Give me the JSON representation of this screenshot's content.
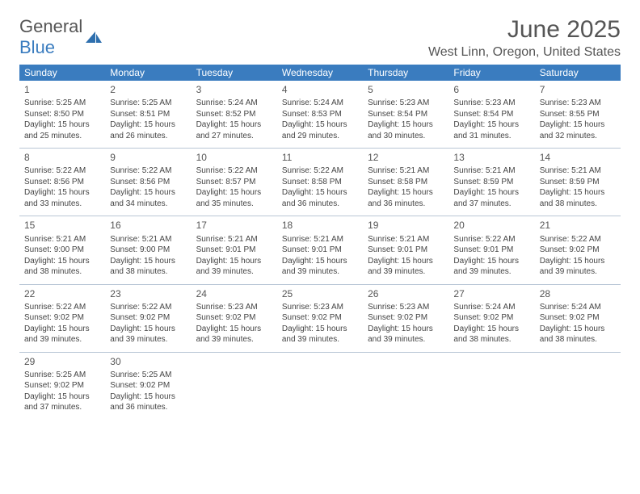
{
  "logo": {
    "general": "General",
    "blue": "Blue"
  },
  "title": "June 2025",
  "subtitle": "West Linn, Oregon, United States",
  "colors": {
    "header_bg": "#3a7cbf",
    "header_text": "#ffffff",
    "border": "#b9c7d6",
    "text": "#444444",
    "title_text": "#555555",
    "logo_blue": "#3a7cbf",
    "page_bg": "#ffffff"
  },
  "daysOfWeek": [
    "Sunday",
    "Monday",
    "Tuesday",
    "Wednesday",
    "Thursday",
    "Friday",
    "Saturday"
  ],
  "weeks": [
    [
      {
        "day": "1",
        "sunrise": "Sunrise: 5:25 AM",
        "sunset": "Sunset: 8:50 PM",
        "daylight1": "Daylight: 15 hours",
        "daylight2": "and 25 minutes."
      },
      {
        "day": "2",
        "sunrise": "Sunrise: 5:25 AM",
        "sunset": "Sunset: 8:51 PM",
        "daylight1": "Daylight: 15 hours",
        "daylight2": "and 26 minutes."
      },
      {
        "day": "3",
        "sunrise": "Sunrise: 5:24 AM",
        "sunset": "Sunset: 8:52 PM",
        "daylight1": "Daylight: 15 hours",
        "daylight2": "and 27 minutes."
      },
      {
        "day": "4",
        "sunrise": "Sunrise: 5:24 AM",
        "sunset": "Sunset: 8:53 PM",
        "daylight1": "Daylight: 15 hours",
        "daylight2": "and 29 minutes."
      },
      {
        "day": "5",
        "sunrise": "Sunrise: 5:23 AM",
        "sunset": "Sunset: 8:54 PM",
        "daylight1": "Daylight: 15 hours",
        "daylight2": "and 30 minutes."
      },
      {
        "day": "6",
        "sunrise": "Sunrise: 5:23 AM",
        "sunset": "Sunset: 8:54 PM",
        "daylight1": "Daylight: 15 hours",
        "daylight2": "and 31 minutes."
      },
      {
        "day": "7",
        "sunrise": "Sunrise: 5:23 AM",
        "sunset": "Sunset: 8:55 PM",
        "daylight1": "Daylight: 15 hours",
        "daylight2": "and 32 minutes."
      }
    ],
    [
      {
        "day": "8",
        "sunrise": "Sunrise: 5:22 AM",
        "sunset": "Sunset: 8:56 PM",
        "daylight1": "Daylight: 15 hours",
        "daylight2": "and 33 minutes."
      },
      {
        "day": "9",
        "sunrise": "Sunrise: 5:22 AM",
        "sunset": "Sunset: 8:56 PM",
        "daylight1": "Daylight: 15 hours",
        "daylight2": "and 34 minutes."
      },
      {
        "day": "10",
        "sunrise": "Sunrise: 5:22 AM",
        "sunset": "Sunset: 8:57 PM",
        "daylight1": "Daylight: 15 hours",
        "daylight2": "and 35 minutes."
      },
      {
        "day": "11",
        "sunrise": "Sunrise: 5:22 AM",
        "sunset": "Sunset: 8:58 PM",
        "daylight1": "Daylight: 15 hours",
        "daylight2": "and 36 minutes."
      },
      {
        "day": "12",
        "sunrise": "Sunrise: 5:21 AM",
        "sunset": "Sunset: 8:58 PM",
        "daylight1": "Daylight: 15 hours",
        "daylight2": "and 36 minutes."
      },
      {
        "day": "13",
        "sunrise": "Sunrise: 5:21 AM",
        "sunset": "Sunset: 8:59 PM",
        "daylight1": "Daylight: 15 hours",
        "daylight2": "and 37 minutes."
      },
      {
        "day": "14",
        "sunrise": "Sunrise: 5:21 AM",
        "sunset": "Sunset: 8:59 PM",
        "daylight1": "Daylight: 15 hours",
        "daylight2": "and 38 minutes."
      }
    ],
    [
      {
        "day": "15",
        "sunrise": "Sunrise: 5:21 AM",
        "sunset": "Sunset: 9:00 PM",
        "daylight1": "Daylight: 15 hours",
        "daylight2": "and 38 minutes."
      },
      {
        "day": "16",
        "sunrise": "Sunrise: 5:21 AM",
        "sunset": "Sunset: 9:00 PM",
        "daylight1": "Daylight: 15 hours",
        "daylight2": "and 38 minutes."
      },
      {
        "day": "17",
        "sunrise": "Sunrise: 5:21 AM",
        "sunset": "Sunset: 9:01 PM",
        "daylight1": "Daylight: 15 hours",
        "daylight2": "and 39 minutes."
      },
      {
        "day": "18",
        "sunrise": "Sunrise: 5:21 AM",
        "sunset": "Sunset: 9:01 PM",
        "daylight1": "Daylight: 15 hours",
        "daylight2": "and 39 minutes."
      },
      {
        "day": "19",
        "sunrise": "Sunrise: 5:21 AM",
        "sunset": "Sunset: 9:01 PM",
        "daylight1": "Daylight: 15 hours",
        "daylight2": "and 39 minutes."
      },
      {
        "day": "20",
        "sunrise": "Sunrise: 5:22 AM",
        "sunset": "Sunset: 9:01 PM",
        "daylight1": "Daylight: 15 hours",
        "daylight2": "and 39 minutes."
      },
      {
        "day": "21",
        "sunrise": "Sunrise: 5:22 AM",
        "sunset": "Sunset: 9:02 PM",
        "daylight1": "Daylight: 15 hours",
        "daylight2": "and 39 minutes."
      }
    ],
    [
      {
        "day": "22",
        "sunrise": "Sunrise: 5:22 AM",
        "sunset": "Sunset: 9:02 PM",
        "daylight1": "Daylight: 15 hours",
        "daylight2": "and 39 minutes."
      },
      {
        "day": "23",
        "sunrise": "Sunrise: 5:22 AM",
        "sunset": "Sunset: 9:02 PM",
        "daylight1": "Daylight: 15 hours",
        "daylight2": "and 39 minutes."
      },
      {
        "day": "24",
        "sunrise": "Sunrise: 5:23 AM",
        "sunset": "Sunset: 9:02 PM",
        "daylight1": "Daylight: 15 hours",
        "daylight2": "and 39 minutes."
      },
      {
        "day": "25",
        "sunrise": "Sunrise: 5:23 AM",
        "sunset": "Sunset: 9:02 PM",
        "daylight1": "Daylight: 15 hours",
        "daylight2": "and 39 minutes."
      },
      {
        "day": "26",
        "sunrise": "Sunrise: 5:23 AM",
        "sunset": "Sunset: 9:02 PM",
        "daylight1": "Daylight: 15 hours",
        "daylight2": "and 39 minutes."
      },
      {
        "day": "27",
        "sunrise": "Sunrise: 5:24 AM",
        "sunset": "Sunset: 9:02 PM",
        "daylight1": "Daylight: 15 hours",
        "daylight2": "and 38 minutes."
      },
      {
        "day": "28",
        "sunrise": "Sunrise: 5:24 AM",
        "sunset": "Sunset: 9:02 PM",
        "daylight1": "Daylight: 15 hours",
        "daylight2": "and 38 minutes."
      }
    ],
    [
      {
        "day": "29",
        "sunrise": "Sunrise: 5:25 AM",
        "sunset": "Sunset: 9:02 PM",
        "daylight1": "Daylight: 15 hours",
        "daylight2": "and 37 minutes."
      },
      {
        "day": "30",
        "sunrise": "Sunrise: 5:25 AM",
        "sunset": "Sunset: 9:02 PM",
        "daylight1": "Daylight: 15 hours",
        "daylight2": "and 36 minutes."
      },
      null,
      null,
      null,
      null,
      null
    ]
  ]
}
